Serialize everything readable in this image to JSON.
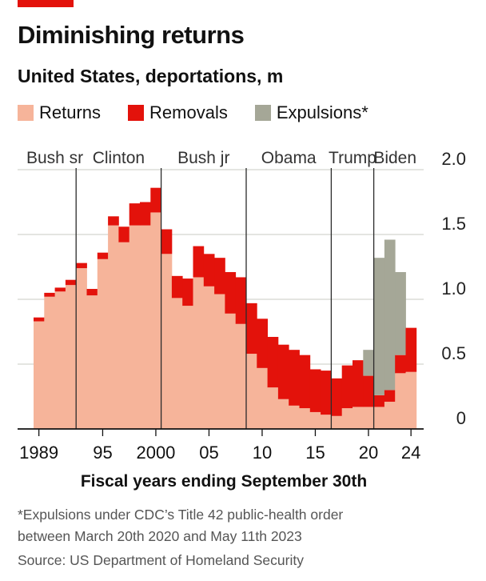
{
  "header": {
    "title": "Diminishing returns",
    "subtitle": "United States, deportations, m"
  },
  "legend": [
    {
      "label": "Returns",
      "color": "#f6b49a"
    },
    {
      "label": "Removals",
      "color": "#e3120b"
    },
    {
      "label": "Expulsions*",
      "color": "#a5a797"
    }
  ],
  "footer": {
    "xlabel": "Fiscal years ending September 30th",
    "note_line1": "*Expulsions under CDC’s Title 42 public-health order",
    "note_line2": "between March 20th 2020 and May 11th 2023",
    "source": "Source: US Department of Homeland Security"
  },
  "chart_data": {
    "type": "bar",
    "stacked": true,
    "title": "Diminishing returns",
    "subtitle": "United States, deportations, m",
    "xlabel": "Fiscal years ending September 30th",
    "ylabel": "",
    "ylim": [
      0,
      2.0
    ],
    "yticks": [
      0,
      0.5,
      1.0,
      1.5,
      2.0
    ],
    "ytick_labels": [
      "0",
      "0.5",
      "1.0",
      "1.5",
      "2.0"
    ],
    "categories": [
      1989,
      1990,
      1991,
      1992,
      1993,
      1994,
      1995,
      1996,
      1997,
      1998,
      1999,
      2000,
      2001,
      2002,
      2003,
      2004,
      2005,
      2006,
      2007,
      2008,
      2009,
      2010,
      2011,
      2012,
      2013,
      2014,
      2015,
      2016,
      2017,
      2018,
      2019,
      2020,
      2021,
      2022,
      2023,
      2024
    ],
    "xtick_years": [
      1989,
      1995,
      2000,
      2005,
      2010,
      2015,
      2020,
      2024
    ],
    "xtick_labels": [
      "1989",
      "95",
      "2000",
      "05",
      "10",
      "15",
      "20",
      "24"
    ],
    "series": [
      {
        "name": "Returns",
        "color": "#f6b49a",
        "values": [
          0.83,
          1.02,
          1.06,
          1.11,
          1.24,
          1.03,
          1.31,
          1.57,
          1.44,
          1.57,
          1.57,
          1.67,
          1.35,
          1.01,
          0.95,
          1.17,
          1.1,
          1.04,
          0.89,
          0.81,
          0.58,
          0.47,
          0.32,
          0.23,
          0.18,
          0.16,
          0.13,
          0.11,
          0.1,
          0.16,
          0.17,
          0.17,
          0.17,
          0.21,
          0.43,
          0.44
        ]
      },
      {
        "name": "Removals",
        "color": "#e3120b",
        "values": [
          0.03,
          0.03,
          0.03,
          0.04,
          0.04,
          0.05,
          0.05,
          0.07,
          0.12,
          0.17,
          0.18,
          0.19,
          0.19,
          0.17,
          0.21,
          0.24,
          0.25,
          0.28,
          0.32,
          0.36,
          0.39,
          0.38,
          0.39,
          0.42,
          0.43,
          0.41,
          0.33,
          0.34,
          0.29,
          0.33,
          0.36,
          0.24,
          0.09,
          0.09,
          0.14,
          0.34
        ]
      },
      {
        "name": "Expulsions*",
        "color": "#a5a797",
        "values": [
          0,
          0,
          0,
          0,
          0,
          0,
          0,
          0,
          0,
          0,
          0,
          0,
          0,
          0,
          0,
          0,
          0,
          0,
          0,
          0,
          0,
          0,
          0,
          0,
          0,
          0,
          0,
          0,
          0,
          0,
          0,
          0.2,
          1.06,
          1.16,
          0.64,
          0
        ]
      }
    ],
    "administrations": [
      {
        "label": "Bush sr",
        "start": 1989,
        "end": 1993
      },
      {
        "label": "Clinton",
        "start": 1993,
        "end": 2001
      },
      {
        "label": "Bush jr",
        "start": 2001,
        "end": 2009
      },
      {
        "label": "Obama",
        "start": 2009,
        "end": 2017
      },
      {
        "label": "Trump",
        "start": 2017,
        "end": 2021
      },
      {
        "label": "Biden",
        "start": 2021,
        "end": 2025
      }
    ]
  }
}
